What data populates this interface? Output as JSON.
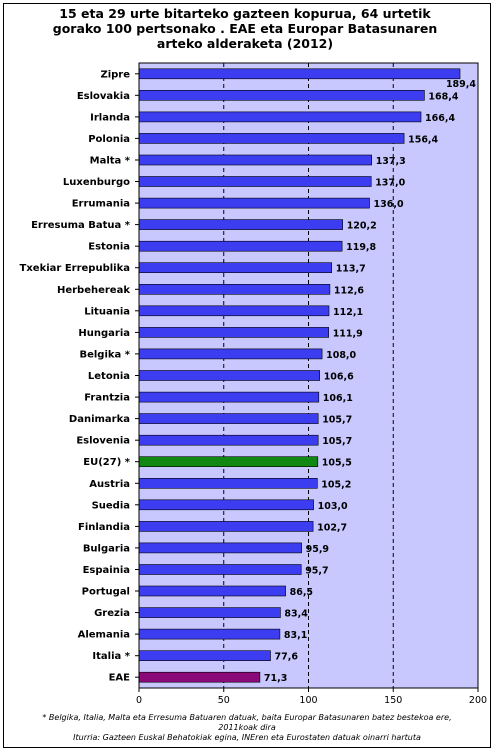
{
  "title_lines": [
    "15 eta 29 urte bitarteko gazteen kopurua, 64 urtetik",
    "gorako 100 pertsonako . EAE eta Europar Batasunaren",
    "arteko alderaketa (2012)"
  ],
  "footnote_lines": [
    "* Belgika, Italia, Malta eta Erresuma Batuaren datuak, baita Europar Batasunaren batez bestekoa ere,",
    "2011koak dira",
    "Iturria: Gazteen Euskal Behatokiak egina, INEren eta Eurostaten datuak oinarri hartuta"
  ],
  "chart_data": {
    "type": "bar",
    "orientation": "horizontal",
    "categories": [
      "Zipre",
      "Eslovakia",
      "Irlanda",
      "Polonia",
      "Malta *",
      "Luxenburgo",
      "Errumania",
      "Erresuma Batua *",
      "Estonia",
      "Txekiar Errepublika",
      "Herbehereak",
      "Lituania",
      "Hungaria",
      "Belgika *",
      "Letonia",
      "Frantzia",
      "Danimarka",
      "Eslovenia",
      "EU(27) *",
      "Austria",
      "Suedia",
      "Finlandia",
      "Bulgaria",
      "Espainia",
      "Portugal",
      "Grezia",
      "Alemania",
      "Italia *",
      "EAE"
    ],
    "values": [
      189.4,
      168.4,
      166.4,
      156.4,
      137.3,
      137.0,
      136.0,
      120.2,
      119.8,
      113.7,
      112.6,
      112.1,
      111.9,
      108.0,
      106.6,
      106.1,
      105.7,
      105.7,
      105.5,
      105.2,
      103.0,
      102.7,
      95.9,
      95.7,
      86.5,
      83.4,
      83.1,
      77.6,
      71.3
    ],
    "value_labels": [
      "189,4",
      "168,4",
      "166,4",
      "156,4",
      "137,3",
      "137,0",
      "136,0",
      "120,2",
      "119,8",
      "113,7",
      "112,6",
      "112,1",
      "111,9",
      "108,0",
      "106,6",
      "106,1",
      "105,7",
      "105,7",
      "105,5",
      "105,2",
      "103,0",
      "102,7",
      "95,9",
      "95,7",
      "86,5",
      "83,4",
      "83,1",
      "77,6",
      "71,3"
    ],
    "xlim": [
      0,
      200
    ],
    "xticks": [
      0,
      50,
      100,
      150,
      200
    ],
    "grid": "vertical dashed at 50, 100, 150",
    "colors": {
      "plot_background": "#c8c8ff",
      "bar_default": "#3c3cf0",
      "bar_eu27": "#118811",
      "bar_eae": "#8a0a7a",
      "bar_border": "#000000"
    }
  }
}
